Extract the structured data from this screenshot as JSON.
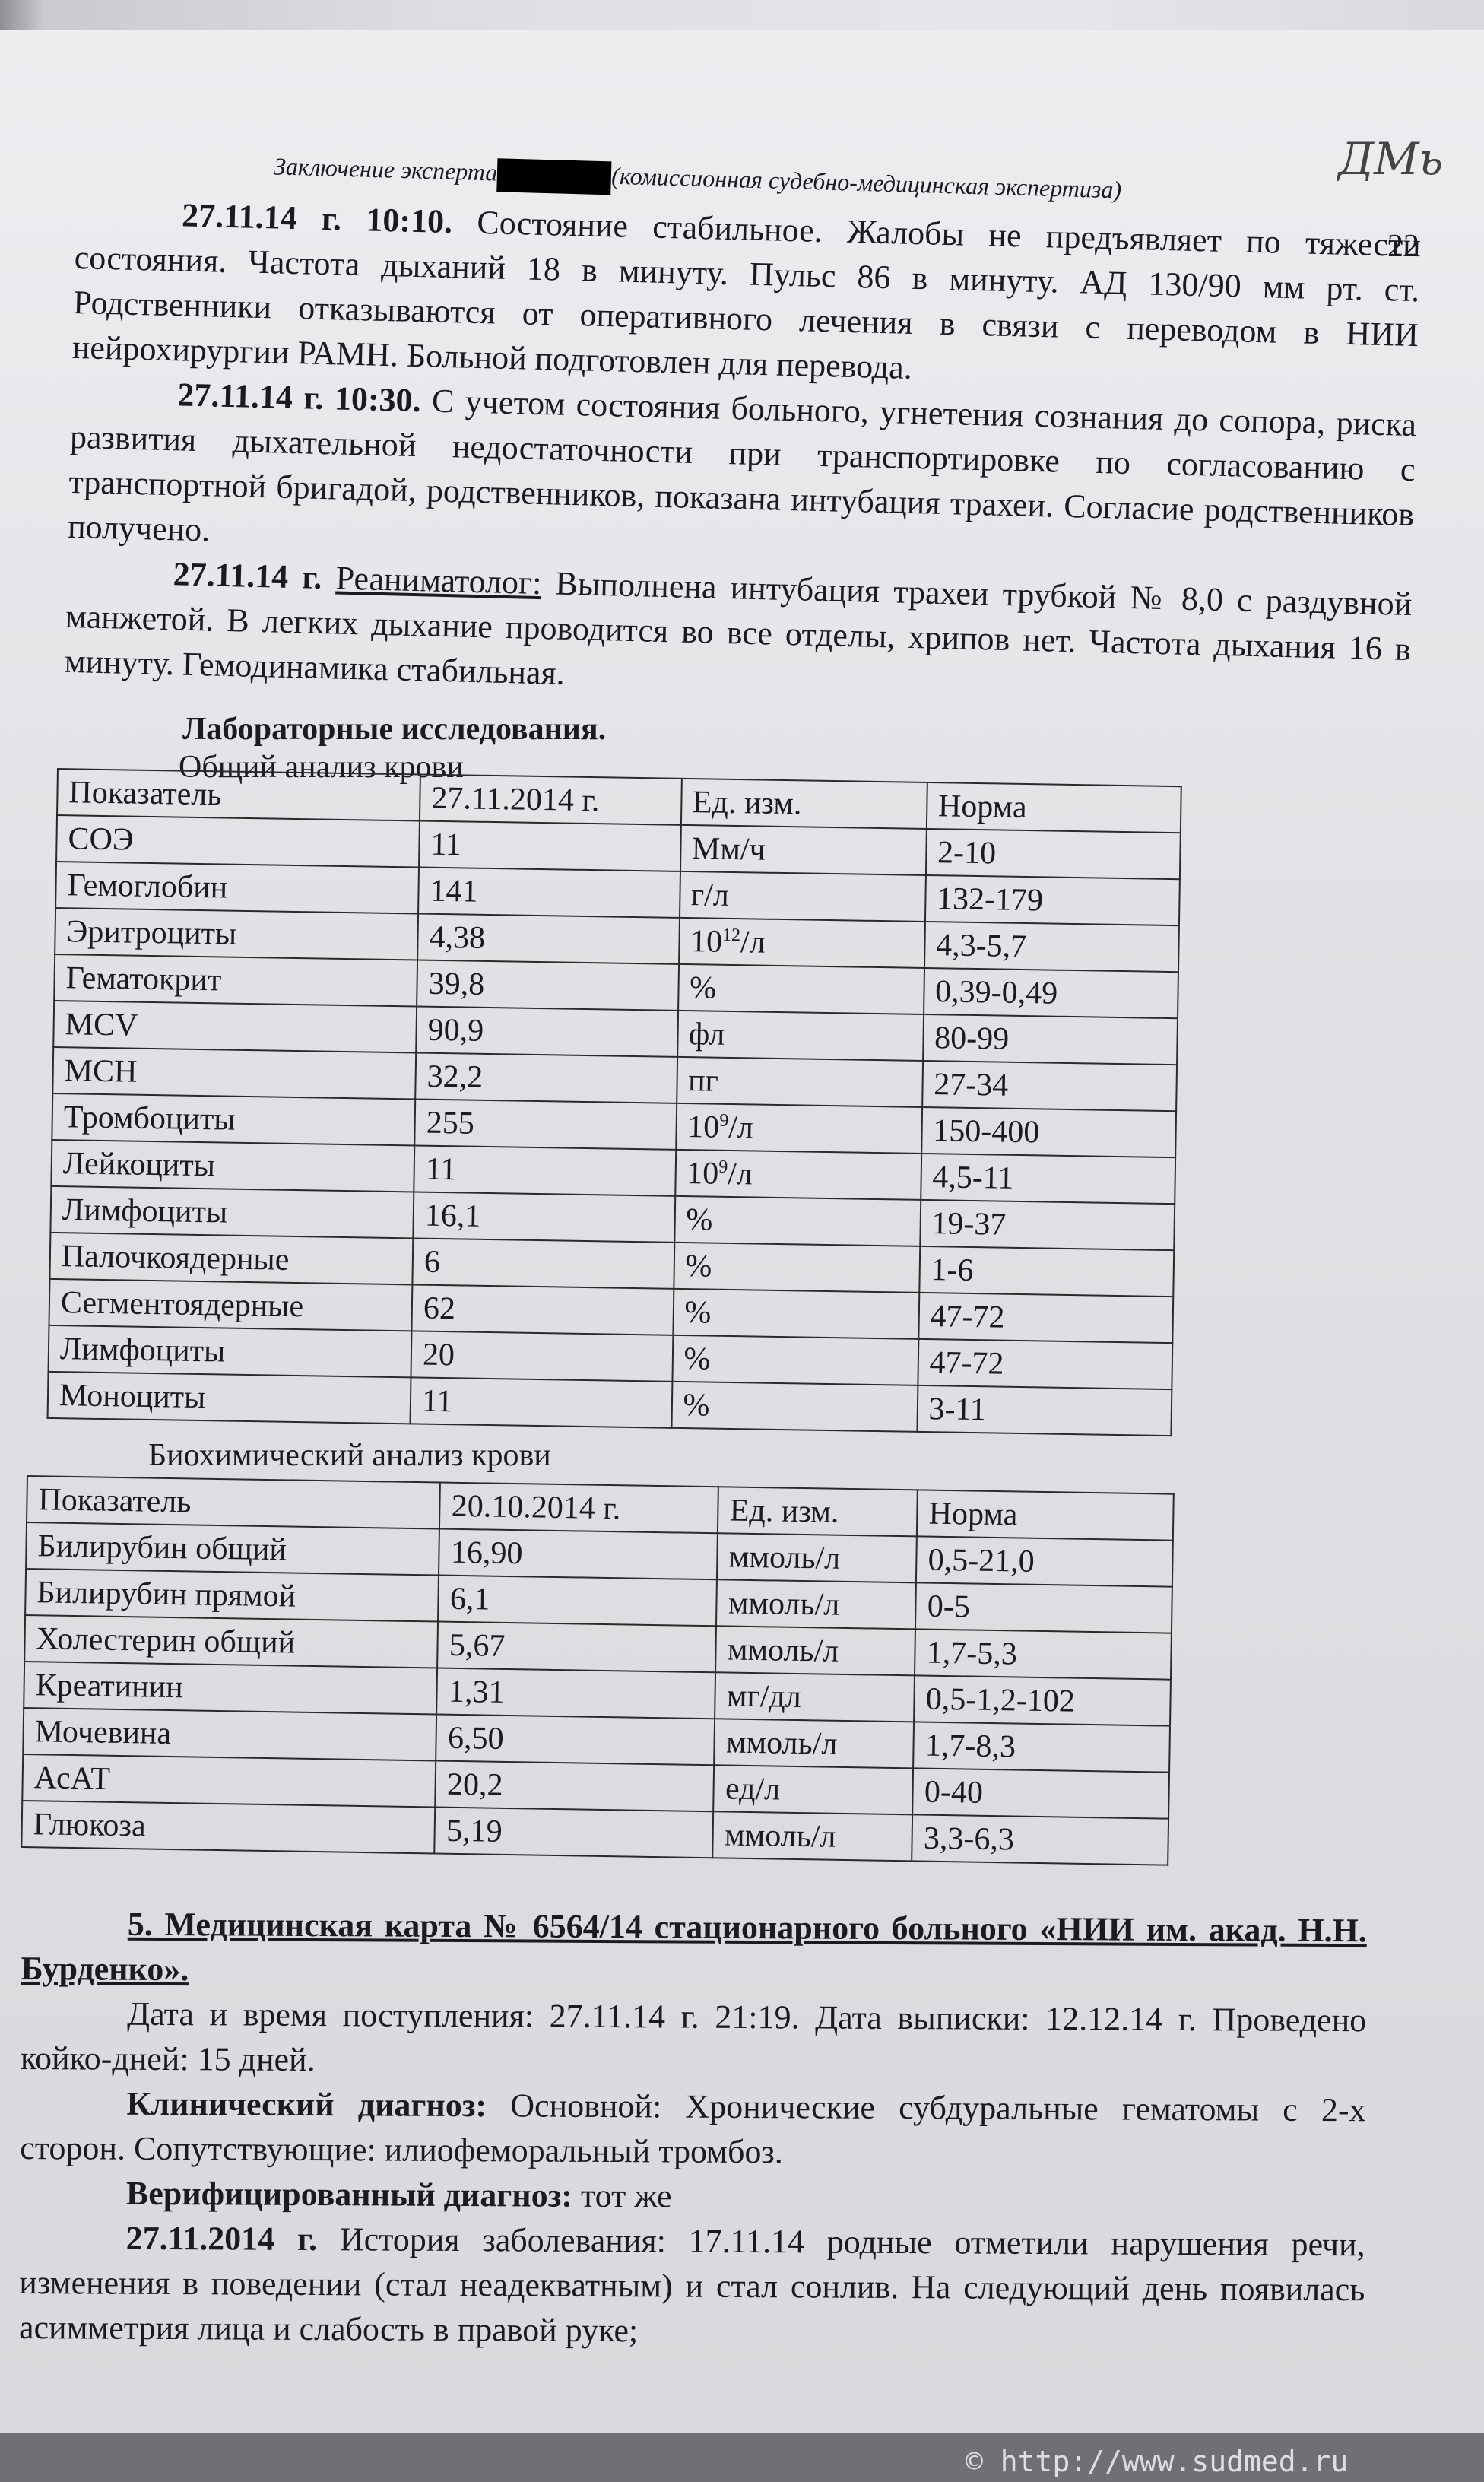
{
  "header": {
    "text_before": "Заключение эксперта",
    "text_after": "(комиссионная судебно-медицинская экспертиза)",
    "page_number": "22",
    "signature": "ДМь"
  },
  "top_paragraphs": [
    [
      {
        "t": "27.11.14 г. 10:10.",
        "s": "b"
      },
      {
        "t": " Состояние стабильное. Жалобы не предъявляет по тяжести состояния. Частота дыханий 18 в минуту. Пульс 86 в минуту. АД 130/90 мм рт. ст. Родственники отказываются  от оперативного лечения в связи с переводом в НИИ нейрохирургии РАМН. Больной подготовлен для перевода."
      }
    ],
    [
      {
        "t": "27.11.14 г. 10:30.",
        "s": "b"
      },
      {
        "t": " С учетом состояния больного, угнетения сознания до сопора, риска развития дыхательной недостаточности при транспортировке по согласованию с транспортной бригадой, родственников, показана интубация трахеи. Согласие родственников получено."
      }
    ],
    [
      {
        "t": "27.11.14 г.",
        "s": "b"
      },
      {
        "t": " "
      },
      {
        "t": "Реаниматолог:",
        "s": "u"
      },
      {
        "t": " Выполнена интубация трахеи трубкой № 8,0 с раздувной манжетой. В легких дыхание проводится во все отделы, хрипов нет. Частота дыхания 16 в минуту. Гемодинамика стабильная."
      }
    ]
  ],
  "lab_title": "Лабораторные исследования.",
  "cbc": {
    "title": "Общий анализ крови",
    "headers": [
      "Показатель",
      "27.11.2014 г.",
      "Ед. изм.",
      "Норма"
    ],
    "rows": [
      [
        "СОЭ",
        "11",
        "Мм/ч",
        "2-10"
      ],
      [
        "Гемоглобин",
        "141",
        "г/л",
        "132-179"
      ],
      [
        "Эритроциты",
        "4,38",
        "10^12/л",
        "4,3-5,7"
      ],
      [
        "Гематокрит",
        "39,8",
        "%",
        "0,39-0,49"
      ],
      [
        "MCV",
        "90,9",
        "фл",
        "80-99"
      ],
      [
        "MCH",
        "32,2",
        "пг",
        "27-34"
      ],
      [
        "Тромбоциты",
        "255",
        "10^9/л",
        "150-400"
      ],
      [
        "Лейкоциты",
        "11",
        "10^9/л",
        "4,5-11"
      ],
      [
        "Лимфоциты",
        "16,1",
        "%",
        "19-37"
      ],
      [
        "Палочкоядерные",
        "6",
        "%",
        "1-6"
      ],
      [
        "Сегментоядерные",
        "62",
        "%",
        "47-72"
      ],
      [
        "Лимфоциты",
        "20",
        "%",
        "47-72"
      ],
      [
        "Моноциты",
        "11",
        "%",
        "3-11"
      ]
    ]
  },
  "biochem": {
    "title": "Биохимический анализ крови",
    "headers": [
      "Показатель",
      "20.10.2014 г.",
      "Ед. изм.",
      "Норма"
    ],
    "rows": [
      [
        "Билирубин общий",
        "16,90",
        "ммоль/л",
        "0,5-21,0"
      ],
      [
        "Билирубин прямой",
        "6,1",
        "ммоль/л",
        "0-5"
      ],
      [
        "Холестерин общий",
        "5,67",
        "ммоль/л",
        "1,7-5,3"
      ],
      [
        "Креатинин",
        "1,31",
        "мг/дл",
        "0,5-1,2-102"
      ],
      [
        "Мочевина",
        "6,50",
        "ммоль/л",
        "1,7-8,3"
      ],
      [
        "АсАТ",
        "20,2",
        "ед/л",
        "0-40"
      ],
      [
        "Глюкоза",
        "5,19",
        "ммоль/л",
        "3,3-6,3"
      ]
    ]
  },
  "bottom_paragraphs": [
    [
      {
        "t": "5.    Медицинская карта № 6564/14 стационарного больного «НИИ им. акад. Н.Н. Бурденко».",
        "s": "b u"
      }
    ],
    [
      {
        "t": "Дата и время поступления: 27.11.14 г. 21:19. Дата выписки: 12.12.14 г. Проведено койко-дней: 15 дней."
      }
    ],
    [
      {
        "t": "Клинический диагноз:",
        "s": "b"
      },
      {
        "t": " Основной: Хронические субдуральные гематомы с 2-х сторон. Сопутствующие: илиофеморальный тромбоз."
      }
    ],
    [
      {
        "t": "Верифицированный диагноз:",
        "s": "b"
      },
      {
        "t": " тот же"
      }
    ],
    [
      {
        "t": "27.11.2014 г.",
        "s": "b"
      },
      {
        "t": " История заболевания: 17.11.14 родные отметили нарушения речи, изменения в поведении (стал неадекватным) и стал сонлив. На следующий день появилась асимметрия лица и слабость в правой руке;"
      }
    ]
  ],
  "watermark": "© http://www.sudmed.ru"
}
